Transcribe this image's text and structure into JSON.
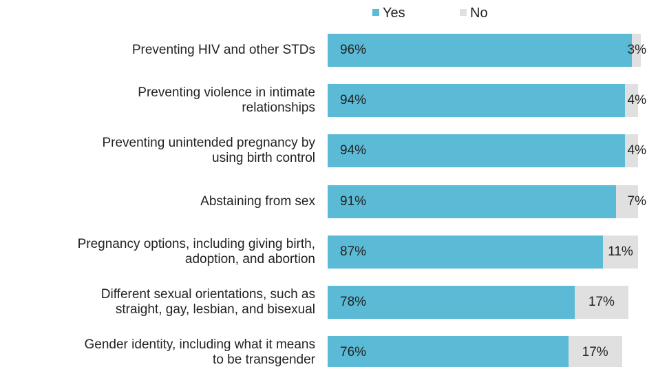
{
  "chart_data": {
    "type": "stacked-bar-horizontal",
    "categories": [
      "Preventing HIV and other STDs",
      "Preventing violence in intimate\nrelationships",
      "Preventing unintended pregnancy by\nusing birth control",
      "Abstaining from sex",
      "Pregnancy options, including giving birth,\nadoption, and abortion",
      "Different sexual orientations, such as\nstraight, gay, lesbian, and bisexual",
      "Gender identity, including what it means\nto be transgender"
    ],
    "series": [
      {
        "name": "Yes",
        "color": "#5bbad5",
        "values": [
          96,
          94,
          94,
          91,
          87,
          78,
          76
        ],
        "value_labels": [
          "96%",
          "94%",
          "94%",
          "91%",
          "87%",
          "78%",
          "76%"
        ]
      },
      {
        "name": "No",
        "color": "#e0e0e0",
        "values": [
          3,
          4,
          4,
          7,
          11,
          17,
          17
        ],
        "value_labels": [
          "3%",
          "4%",
          "4%",
          "7%",
          "11%",
          "17%",
          "17%"
        ]
      }
    ],
    "xlim": [
      0,
      100
    ],
    "legend": "top"
  }
}
